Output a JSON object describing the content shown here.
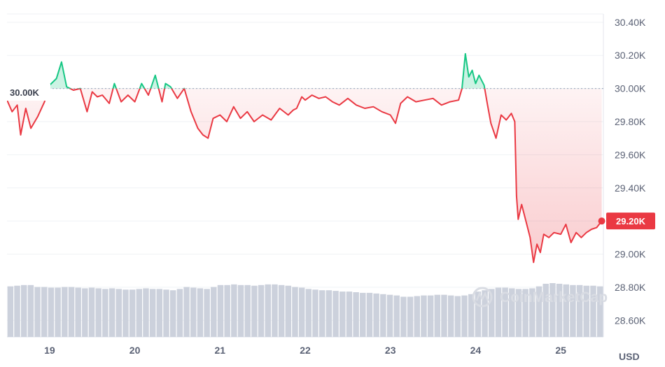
{
  "watermark": {
    "text": "CoinMarketCap",
    "icon": "coinmarketcap-logo-icon"
  },
  "colors": {
    "up": "#16c784",
    "down": "#ea3943",
    "volume": "#ccd1dc",
    "grid": "#eff2f5",
    "reference": "#a6b0c3",
    "badge": "#ea3943"
  },
  "chart_data": {
    "type": "line",
    "title": "",
    "currency_label": "USD",
    "reference_value": 30000,
    "reference_label": "30.00K",
    "current_value": 29200,
    "current_label": "29.20K",
    "ylim": [
      28500,
      30450
    ],
    "xlim": [
      18.5,
      25.5
    ],
    "y_ticks": [
      {
        "value": 30400,
        "label": "30.40K"
      },
      {
        "value": 30200,
        "label": "30.20K"
      },
      {
        "value": 30000,
        "label": "30.00K"
      },
      {
        "value": 29800,
        "label": "29.80K"
      },
      {
        "value": 29600,
        "label": "29.60K"
      },
      {
        "value": 29400,
        "label": "29.40K"
      },
      {
        "value": 29200,
        "label": "29.20K"
      },
      {
        "value": 29000,
        "label": "29.00K"
      },
      {
        "value": 28800,
        "label": "28.80K"
      },
      {
        "value": 28600,
        "label": "28.60K"
      }
    ],
    "x_ticks": [
      {
        "value": 19,
        "label": "19"
      },
      {
        "value": 20,
        "label": "20"
      },
      {
        "value": 21,
        "label": "21"
      },
      {
        "value": 22,
        "label": "22"
      },
      {
        "value": 23,
        "label": "23"
      },
      {
        "value": 24,
        "label": "24"
      },
      {
        "value": 25,
        "label": "25"
      }
    ],
    "price": {
      "x": [
        18.5,
        18.56,
        18.62,
        18.66,
        18.72,
        18.78,
        18.86,
        18.94,
        19.0,
        19.08,
        19.14,
        19.2,
        19.28,
        19.36,
        19.44,
        19.5,
        19.56,
        19.62,
        19.7,
        19.76,
        19.84,
        19.92,
        20.0,
        20.08,
        20.16,
        20.24,
        20.32,
        20.36,
        20.42,
        20.5,
        20.58,
        20.66,
        20.74,
        20.8,
        20.86,
        20.92,
        21.0,
        21.08,
        21.16,
        21.24,
        21.32,
        21.4,
        21.5,
        21.6,
        21.7,
        21.8,
        21.86,
        21.9,
        21.96,
        22.0,
        22.08,
        22.16,
        22.24,
        22.32,
        22.4,
        22.5,
        22.6,
        22.7,
        22.8,
        22.9,
        23.0,
        23.06,
        23.12,
        23.2,
        23.3,
        23.4,
        23.5,
        23.6,
        23.7,
        23.8,
        23.84,
        23.88,
        23.92,
        23.96,
        24.0,
        24.04,
        24.1,
        24.14,
        24.18,
        24.24,
        24.3,
        24.36,
        24.42,
        24.46,
        24.48,
        24.5,
        24.54,
        24.6,
        24.64,
        24.68,
        24.72,
        24.76,
        24.8,
        24.86,
        24.92,
        25.0,
        25.06,
        25.12,
        25.18,
        25.24,
        25.3,
        25.36,
        25.42,
        25.48
      ],
      "y": [
        29930,
        29860,
        29900,
        29720,
        29880,
        29760,
        29830,
        29920,
        30020,
        30060,
        30160,
        30010,
        29990,
        30000,
        29860,
        29980,
        29950,
        29960,
        29910,
        30030,
        29920,
        29960,
        29920,
        30030,
        29960,
        30080,
        29920,
        30030,
        30010,
        29940,
        30000,
        29860,
        29760,
        29720,
        29700,
        29820,
        29840,
        29800,
        29890,
        29820,
        29860,
        29800,
        29840,
        29810,
        29880,
        29840,
        29870,
        29880,
        29950,
        29930,
        29960,
        29940,
        29950,
        29920,
        29900,
        29940,
        29900,
        29880,
        29890,
        29860,
        29840,
        29790,
        29910,
        29950,
        29920,
        29930,
        29940,
        29900,
        29920,
        29930,
        30000,
        30210,
        30070,
        30110,
        30030,
        30080,
        30020,
        29900,
        29790,
        29700,
        29840,
        29810,
        29850,
        29800,
        29350,
        29210,
        29300,
        29180,
        29100,
        28950,
        29060,
        29010,
        29120,
        29100,
        29130,
        29120,
        29180,
        29070,
        29130,
        29100,
        29130,
        29150,
        29160,
        29200
      ]
    },
    "volume": [
      0.78,
      0.79,
      0.8,
      0.8,
      0.77,
      0.77,
      0.76,
      0.76,
      0.77,
      0.77,
      0.76,
      0.75,
      0.76,
      0.75,
      0.74,
      0.75,
      0.74,
      0.73,
      0.73,
      0.74,
      0.75,
      0.74,
      0.74,
      0.73,
      0.72,
      0.74,
      0.77,
      0.76,
      0.75,
      0.74,
      0.77,
      0.8,
      0.8,
      0.81,
      0.8,
      0.8,
      0.79,
      0.8,
      0.81,
      0.81,
      0.8,
      0.79,
      0.77,
      0.76,
      0.74,
      0.73,
      0.72,
      0.72,
      0.71,
      0.7,
      0.7,
      0.69,
      0.68,
      0.68,
      0.67,
      0.66,
      0.65,
      0.64,
      0.62,
      0.62,
      0.63,
      0.64,
      0.64,
      0.65,
      0.65,
      0.64,
      0.63,
      0.64,
      0.66,
      0.7,
      0.72,
      0.74,
      0.76,
      0.76,
      0.75,
      0.74,
      0.74,
      0.75,
      0.78,
      0.82,
      0.83,
      0.82,
      0.81,
      0.8,
      0.8,
      0.79,
      0.79,
      0.78
    ]
  }
}
